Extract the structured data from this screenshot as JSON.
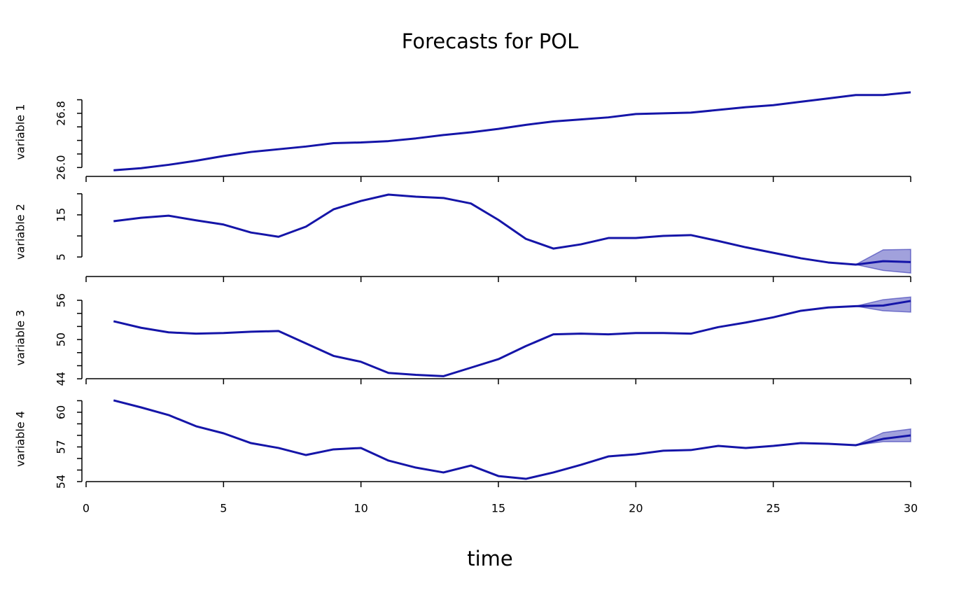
{
  "figure": {
    "title": "Forecasts for POL",
    "x_label": "time",
    "x": [
      1,
      2,
      3,
      4,
      5,
      6,
      7,
      8,
      9,
      10,
      11,
      12,
      13,
      14,
      15,
      16,
      17,
      18,
      19,
      20,
      21,
      22,
      23,
      24,
      25,
      26,
      27,
      28,
      29,
      30
    ],
    "xlim": [
      0,
      30
    ],
    "xticks": [
      0,
      5,
      10,
      15,
      20,
      25,
      30
    ]
  },
  "chart_data": [
    {
      "type": "line",
      "y_label": "variable 1",
      "color": "#1515a8",
      "ylim": [
        25.9,
        27.15
      ],
      "yticks": [
        {
          "value": 26,
          "label": "26.0"
        },
        {
          "value": 26.2
        },
        {
          "value": 26.4
        },
        {
          "value": 26.6
        },
        {
          "value": 26.8,
          "label": "26.8"
        },
        {
          "value": 27.0
        }
      ],
      "values": [
        25.96,
        25.99,
        26.04,
        26.1,
        26.17,
        26.23,
        26.27,
        26.31,
        26.36,
        26.37,
        26.39,
        26.43,
        26.48,
        26.52,
        26.57,
        26.63,
        26.68,
        26.71,
        26.74,
        26.79,
        26.8,
        26.81,
        26.85,
        26.89,
        26.92,
        26.97,
        27.02,
        27.07,
        27.07,
        27.11
      ]
    },
    {
      "type": "line",
      "y_label": "variable 2",
      "color": "#1515a8",
      "ylim": [
        1.2,
        20.8
      ],
      "yticks": [
        {
          "value": 5,
          "label": "5"
        },
        {
          "value": 10
        },
        {
          "value": 15,
          "label": "15"
        },
        {
          "value": 20
        }
      ],
      "values": [
        13.5,
        14.3,
        14.8,
        13.7,
        12.7,
        10.8,
        9.8,
        12.2,
        16.3,
        18.3,
        19.8,
        19.3,
        19.0,
        17.7,
        13.8,
        9.3,
        7.0,
        8.0,
        9.5,
        9.5,
        10.0,
        10.2,
        8.8,
        7.3,
        6.0,
        4.7,
        3.7,
        3.2,
        4.0,
        3.8
      ],
      "lower": [
        null,
        null,
        null,
        null,
        null,
        null,
        null,
        null,
        null,
        null,
        null,
        null,
        null,
        null,
        null,
        null,
        null,
        null,
        null,
        null,
        null,
        null,
        null,
        null,
        null,
        null,
        null,
        3.2,
        1.8,
        1.2
      ],
      "upper": [
        null,
        null,
        null,
        null,
        null,
        null,
        null,
        null,
        null,
        null,
        null,
        null,
        null,
        null,
        null,
        null,
        null,
        null,
        null,
        null,
        null,
        null,
        null,
        null,
        null,
        null,
        null,
        3.2,
        6.7,
        6.8
      ]
    },
    {
      "type": "line",
      "y_label": "variable 3",
      "color": "#1515a8",
      "ylim": [
        43.8,
        56.75
      ],
      "yticks": [
        {
          "value": 44,
          "label": "44"
        },
        {
          "value": 46
        },
        {
          "value": 48
        },
        {
          "value": 50,
          "label": "50"
        },
        {
          "value": 52
        },
        {
          "value": 54
        },
        {
          "value": 56,
          "label": "56"
        }
      ],
      "values": [
        52.8,
        51.8,
        51.1,
        50.9,
        51.0,
        51.2,
        51.3,
        49.4,
        47.5,
        46.6,
        44.9,
        44.6,
        44.4,
        45.7,
        47.0,
        49.0,
        50.8,
        50.9,
        50.8,
        51.0,
        51.0,
        50.9,
        51.9,
        52.6,
        53.4,
        54.4,
        54.9,
        55.1,
        55.2,
        55.9
      ],
      "lower": [
        null,
        null,
        null,
        null,
        null,
        null,
        null,
        null,
        null,
        null,
        null,
        null,
        null,
        null,
        null,
        null,
        null,
        null,
        null,
        null,
        null,
        null,
        null,
        null,
        null,
        null,
        null,
        55.1,
        54.4,
        54.2
      ],
      "upper": [
        null,
        null,
        null,
        null,
        null,
        null,
        null,
        null,
        null,
        null,
        null,
        null,
        null,
        null,
        null,
        null,
        null,
        null,
        null,
        null,
        null,
        null,
        null,
        null,
        null,
        null,
        null,
        55.1,
        56.1,
        56.5
      ]
    },
    {
      "type": "line",
      "y_label": "variable 4",
      "color": "#1515a8",
      "ylim": [
        54,
        61.39
      ],
      "yticks": [
        {
          "value": 54,
          "label": "54"
        },
        {
          "value": 55
        },
        {
          "value": 56
        },
        {
          "value": 57,
          "label": "57"
        },
        {
          "value": 58
        },
        {
          "value": 59
        },
        {
          "value": 60,
          "label": "60"
        },
        {
          "value": 61
        }
      ],
      "values": [
        61.03,
        60.42,
        59.76,
        58.79,
        58.18,
        57.33,
        56.91,
        56.3,
        56.79,
        56.91,
        55.82,
        55.21,
        54.79,
        55.39,
        54.48,
        54.24,
        54.79,
        55.45,
        56.18,
        56.36,
        56.67,
        56.73,
        57.09,
        56.91,
        57.09,
        57.33,
        57.27,
        57.15,
        57.7,
        58.0
      ],
      "lower": [
        null,
        null,
        null,
        null,
        null,
        null,
        null,
        null,
        null,
        null,
        null,
        null,
        null,
        null,
        null,
        null,
        null,
        null,
        null,
        null,
        null,
        null,
        null,
        null,
        null,
        null,
        null,
        57.15,
        57.45,
        57.45
      ],
      "upper": [
        null,
        null,
        null,
        null,
        null,
        null,
        null,
        null,
        null,
        null,
        null,
        null,
        null,
        null,
        null,
        null,
        null,
        null,
        null,
        null,
        null,
        null,
        null,
        null,
        null,
        null,
        null,
        57.15,
        58.24,
        58.55
      ]
    }
  ]
}
